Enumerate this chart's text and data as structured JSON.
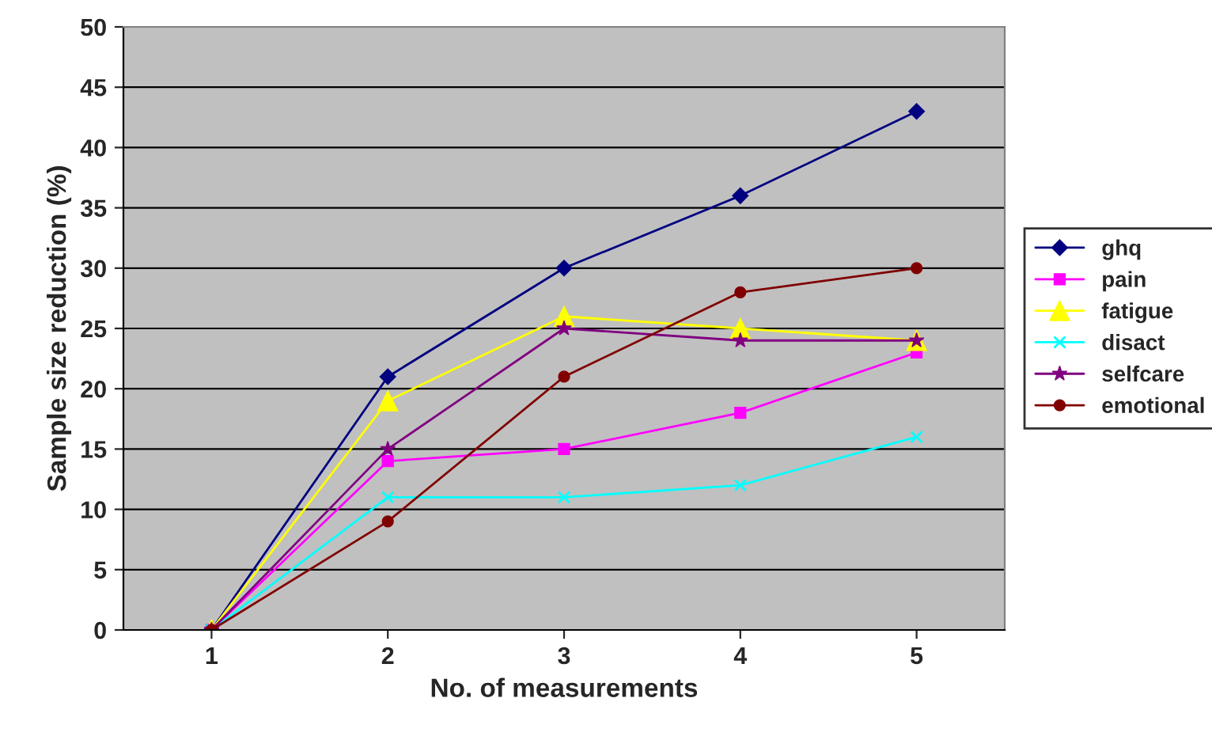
{
  "chart_data": {
    "type": "line",
    "xlabel": "No. of measurements",
    "ylabel": "Sample size reduction (%)",
    "categories": [
      "1",
      "2",
      "3",
      "4",
      "5"
    ],
    "series": [
      {
        "name": "ghq",
        "color": "#000080",
        "marker": "diamond",
        "values": [
          0,
          21,
          30,
          36,
          43
        ]
      },
      {
        "name": "pain",
        "color": "#ff00ff",
        "marker": "square",
        "values": [
          0,
          14,
          15,
          18,
          23
        ]
      },
      {
        "name": "fatigue",
        "color": "#ffff00",
        "marker": "triangle",
        "values": [
          0,
          19,
          26,
          25,
          24
        ]
      },
      {
        "name": "disact",
        "color": "#00ffff",
        "marker": "cross",
        "values": [
          0,
          11,
          11,
          12,
          16
        ]
      },
      {
        "name": "selfcare",
        "color": "#800080",
        "marker": "star",
        "values": [
          0,
          15,
          25,
          24,
          24
        ]
      },
      {
        "name": "emotional",
        "color": "#800000",
        "marker": "circle",
        "values": [
          0,
          9,
          21,
          28,
          30
        ]
      }
    ],
    "ylim": [
      0,
      50
    ],
    "yticks": [
      0,
      5,
      10,
      15,
      20,
      25,
      30,
      35,
      40,
      45,
      50
    ],
    "grid": "y",
    "legend": "right",
    "line_style": "solid"
  }
}
